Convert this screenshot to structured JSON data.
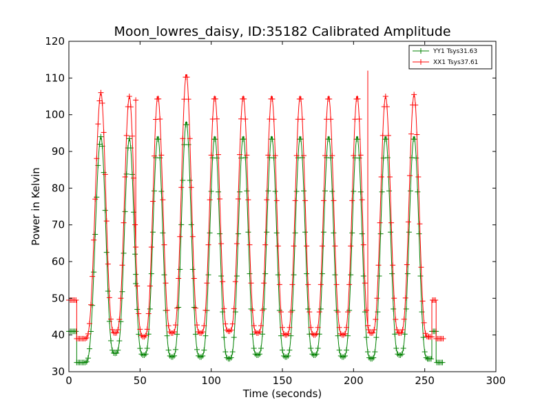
{
  "chart_data": {
    "type": "line",
    "title": "Moon_lowres_daisy, ID:35182 Calibrated Amplitude",
    "xlabel": "Time (seconds)",
    "ylabel": "Power in Kelvin",
    "xlim": [
      0,
      300
    ],
    "ylim": [
      30,
      120
    ],
    "xticks": [
      0,
      50,
      100,
      150,
      200,
      250,
      300
    ],
    "yticks": [
      30,
      40,
      50,
      60,
      70,
      80,
      90,
      100,
      110,
      120
    ],
    "grid": false,
    "legend_position": "top-right",
    "marker": "+",
    "series": [
      {
        "name": "YY1 Tsys31.63",
        "color": "#008000",
        "peak_times": [
          22.5,
          42.5,
          62.5,
          82.5,
          102.5,
          122.5,
          142.5,
          162.5,
          182.5,
          202.5,
          222.5,
          242.5
        ],
        "peak_values": [
          94,
          93.5,
          94,
          98,
          94,
          94,
          94,
          94,
          94,
          94,
          94,
          94
        ],
        "trough_times": [
          32.5,
          52.5,
          72.5,
          92.5,
          112.5,
          132.5,
          152.5,
          172.5,
          192.5,
          212.5,
          232.5
        ],
        "trough_values": [
          35,
          34.5,
          34,
          34,
          33.5,
          34.5,
          34,
          34.5,
          34,
          33.5,
          34.5
        ],
        "start": {
          "flat_value": 41,
          "flat_end": 5.5,
          "low_value": 32.5,
          "low_end": 11
        },
        "end": {
          "trough_value": 33.5,
          "trough_time": 252.5,
          "step_value": 41,
          "step_start": 255,
          "step_end": 258,
          "tail_value": 32.5,
          "tail_end": 263
        },
        "spikes": [
          {
            "time": 47,
            "value": 54
          }
        ]
      },
      {
        "name": "XX1 Tsys37.61",
        "color": "#ff0000",
        "peak_times": [
          22.5,
          42.5,
          62.5,
          82.5,
          102.5,
          122.5,
          142.5,
          162.5,
          182.5,
          202.5,
          222.5,
          242.5
        ],
        "peak_values": [
          106,
          105,
          105,
          111,
          105,
          105,
          105,
          105,
          105,
          105,
          105,
          105.5
        ],
        "trough_times": [
          32.5,
          52.5,
          72.5,
          92.5,
          112.5,
          132.5,
          152.5,
          172.5,
          192.5,
          212.5,
          232.5
        ],
        "trough_values": [
          40.5,
          39.5,
          40.5,
          40.5,
          41,
          40.5,
          40,
          40,
          40,
          40.5,
          40.5
        ],
        "start": {
          "flat_value": 49.5,
          "flat_end": 5.5,
          "low_value": 39,
          "low_end": 11
        },
        "end": {
          "trough_value": 39.5,
          "trough_time": 252.5,
          "step_value": 49.5,
          "step_start": 255,
          "step_end": 258,
          "tail_value": 39,
          "tail_end": 263
        },
        "spikes": [
          {
            "time": 47,
            "value": 104
          },
          {
            "time": 210,
            "value": 112
          }
        ]
      }
    ]
  }
}
